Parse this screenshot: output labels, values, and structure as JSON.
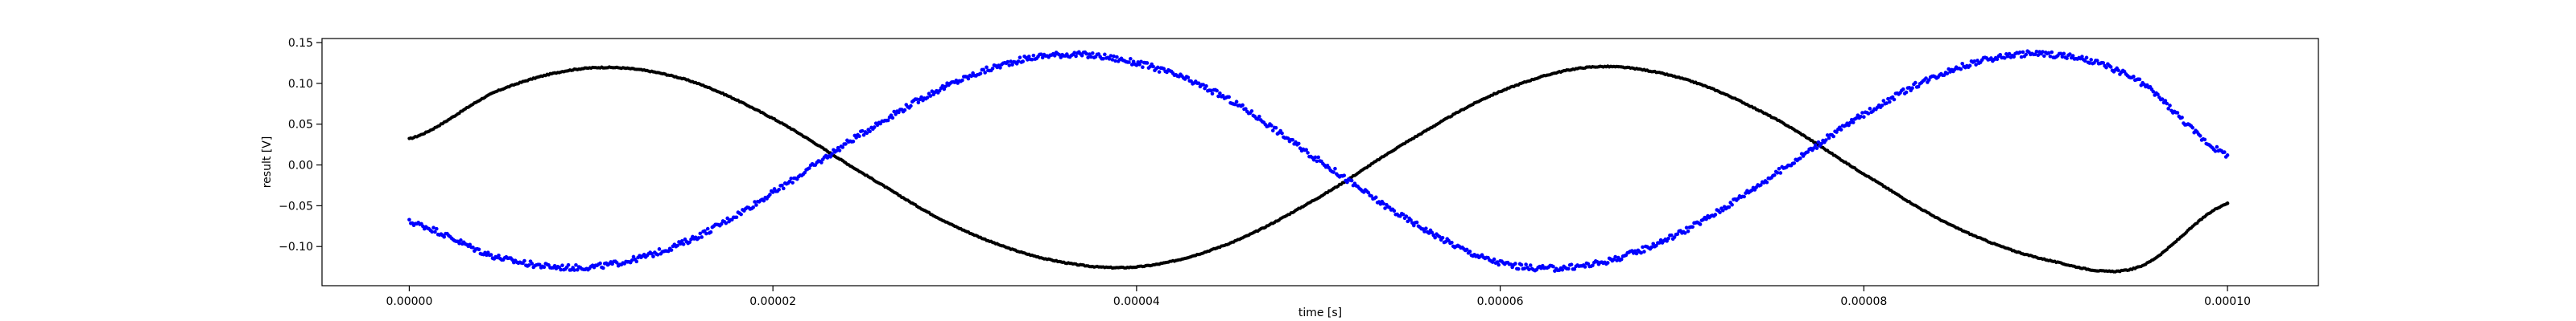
{
  "chart_data": {
    "type": "scatter",
    "title": "",
    "xlabel": "time [s]",
    "ylabel": "result [V]",
    "xlim": [
      -4.8e-06,
      0.000105
    ],
    "ylim": [
      -0.148,
      0.155
    ],
    "x_ticks": [
      0.0,
      2e-05,
      4e-05,
      6e-05,
      8e-05,
      0.0001
    ],
    "x_tick_labels": [
      "0.00000",
      "0.00002",
      "0.00004",
      "0.00006",
      "0.00008",
      "0.00010"
    ],
    "y_ticks": [
      -0.1,
      -0.05,
      0.0,
      0.05,
      0.1,
      0.15
    ],
    "y_tick_labels": [
      "−0.10",
      "−0.05",
      "0.00",
      "0.05",
      "0.10",
      "0.15"
    ],
    "grid": false,
    "legend": "none",
    "series": [
      {
        "color": "#000000",
        "marker": "dot",
        "x": [
          0.0,
          5e-06,
          1e-05,
          1.5e-05,
          2e-05,
          2.5e-05,
          3e-05,
          3.5e-05,
          4e-05,
          4.5e-05,
          5e-05,
          5.5e-05,
          6e-05,
          6.5e-05,
          7e-05,
          7.5e-05,
          8e-05,
          8.5e-05,
          9e-05,
          9.5e-05,
          0.0001
        ],
        "y": [
          0.032,
          0.092,
          0.119,
          0.106,
          0.057,
          -0.011,
          -0.075,
          -0.115,
          -0.125,
          -0.097,
          -0.04,
          0.03,
          0.09,
          0.12,
          0.106,
          0.058,
          -0.011,
          -0.076,
          -0.116,
          -0.126,
          -0.047
        ]
      },
      {
        "color": "#0000ff",
        "marker": "dot",
        "x": [
          0.0,
          5e-06,
          1e-05,
          1.5e-05,
          2e-05,
          2.5e-05,
          3e-05,
          3.5e-05,
          4e-05,
          4.5e-05,
          5e-05,
          5.5e-05,
          6e-05,
          6.5e-05,
          7e-05,
          7.5e-05,
          8e-05,
          8.5e-05,
          9e-05,
          9.5e-05,
          0.0001
        ],
        "y": [
          -0.07,
          -0.114,
          -0.125,
          -0.096,
          -0.034,
          0.04,
          0.101,
          0.134,
          0.125,
          0.081,
          0.006,
          -0.068,
          -0.12,
          -0.122,
          -0.082,
          -0.013,
          0.062,
          0.118,
          0.136,
          0.104,
          0.012
        ]
      }
    ]
  }
}
